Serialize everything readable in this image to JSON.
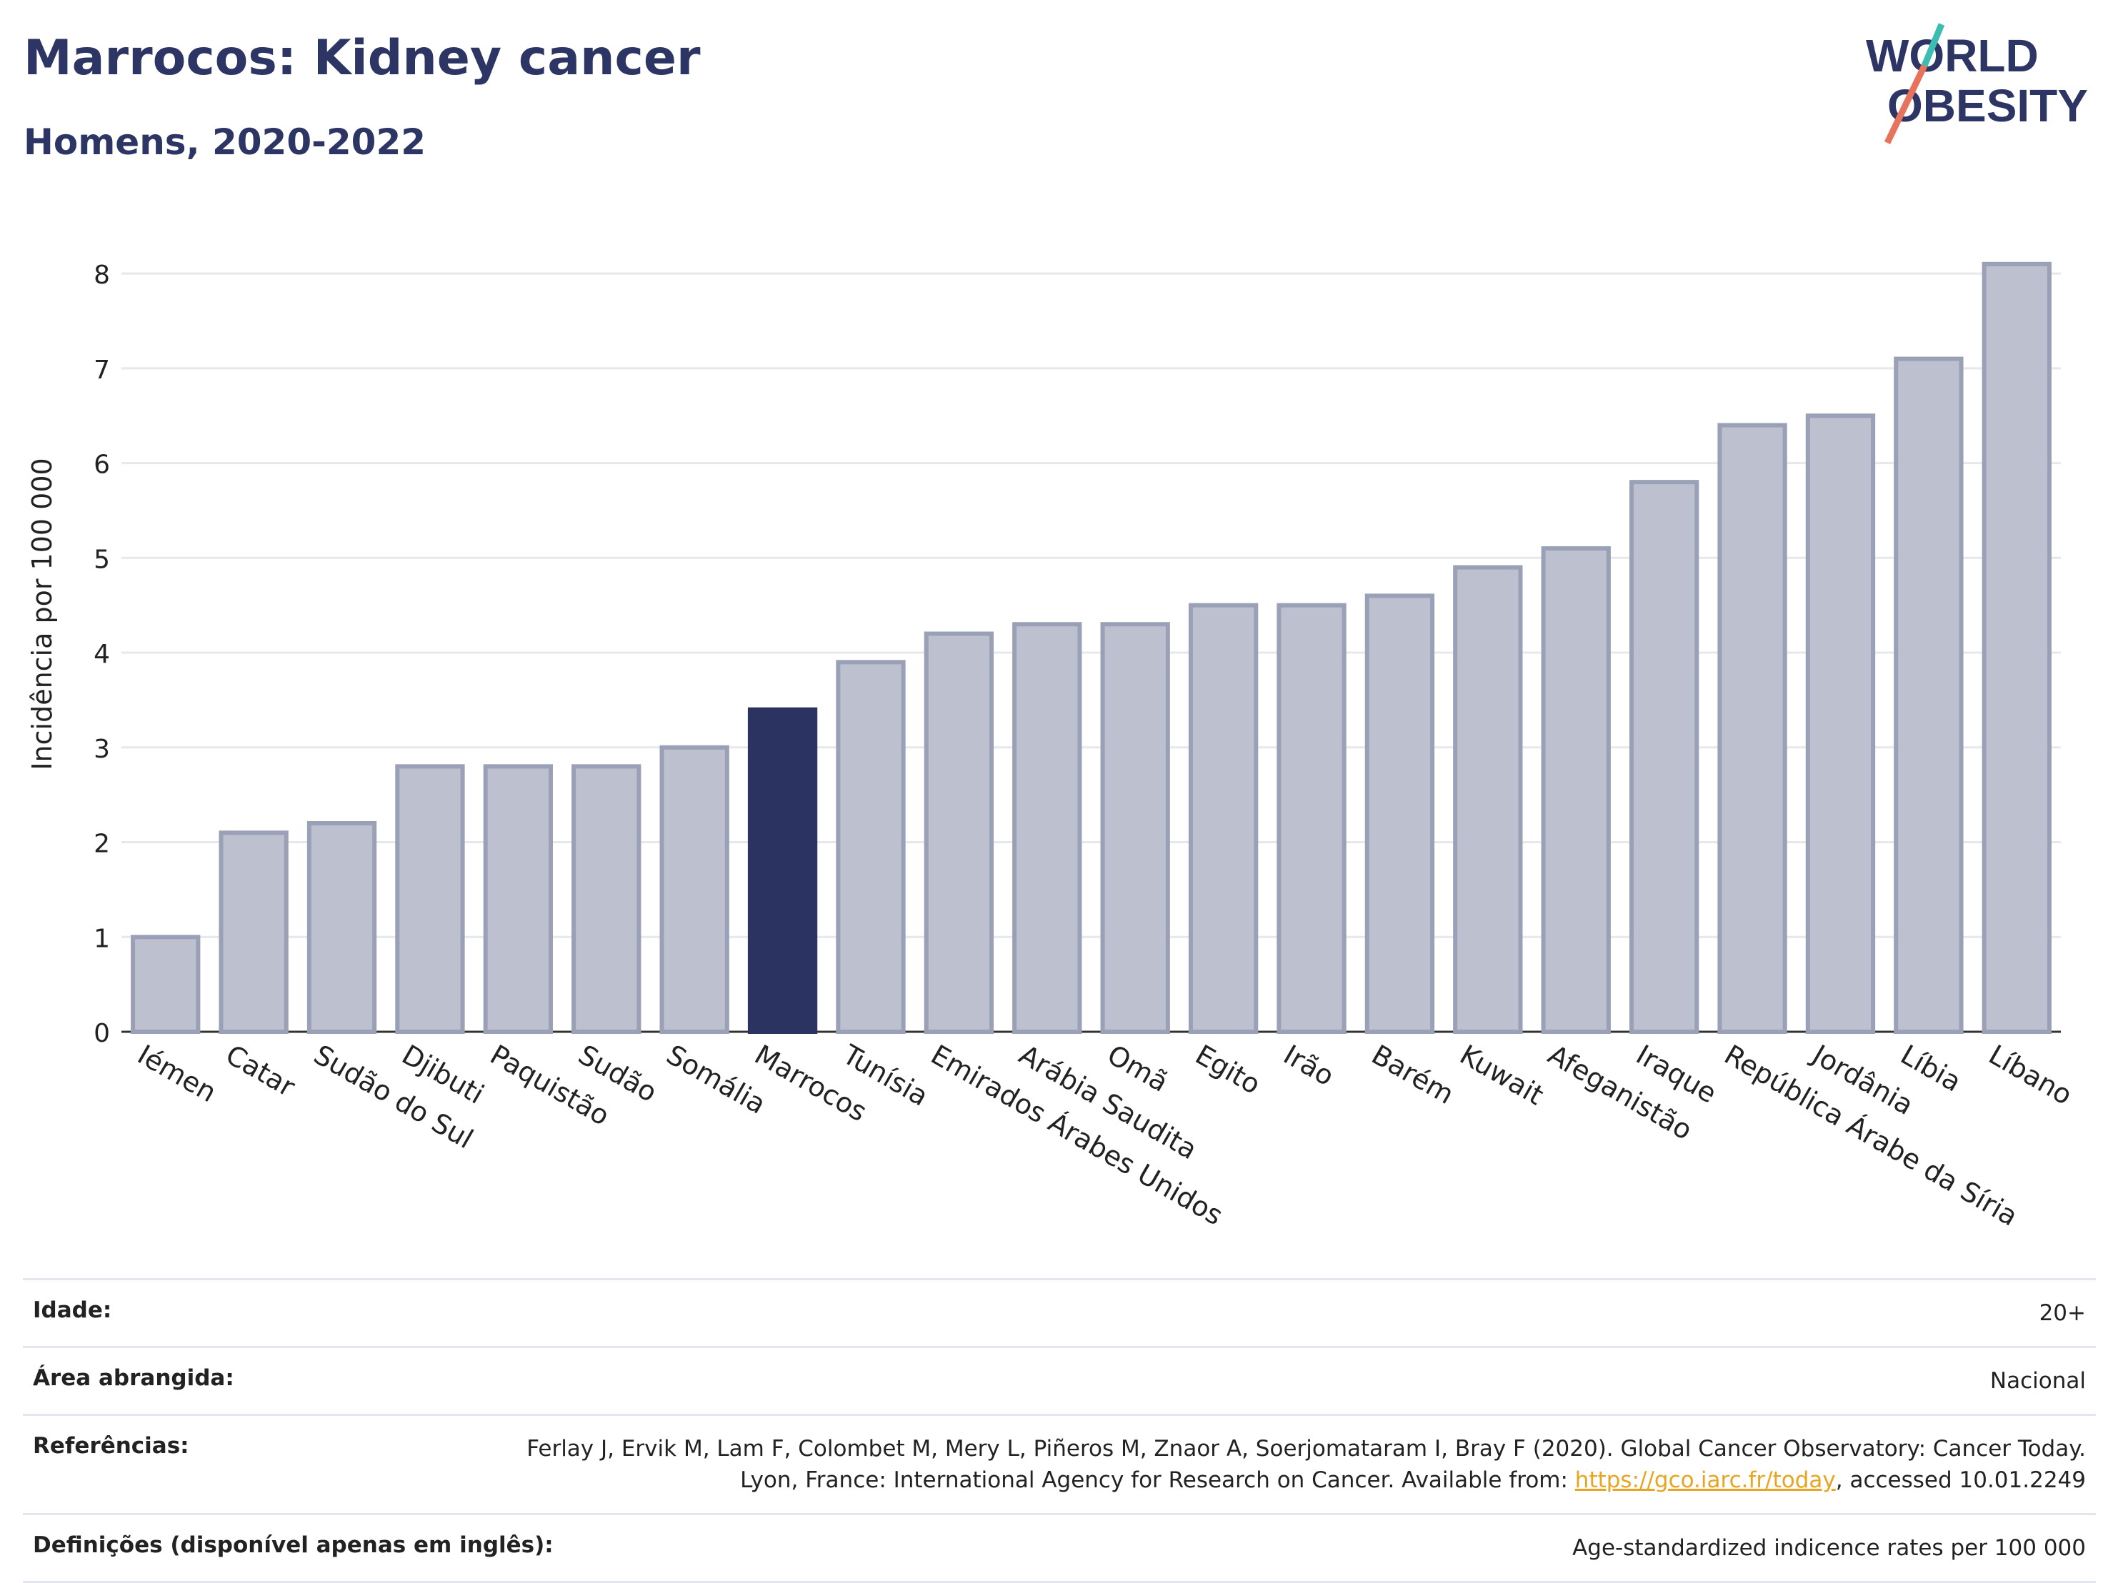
{
  "header": {
    "title": "Marrocos: Kidney cancer",
    "subtitle": "Homens, 2020-2022",
    "logo_line1": "WORLD",
    "logo_line2": "OBESITY"
  },
  "colors": {
    "highlight": "#2b3461",
    "bar": "#bcc0cf",
    "bar_border": "#9aa0b6",
    "title": "#2c3563",
    "logo_teal": "#3dbdb2",
    "logo_coral": "#e8735c"
  },
  "chart_data": {
    "type": "bar",
    "title": "Marrocos: Kidney cancer",
    "subtitle": "Homens, 2020-2022",
    "xlabel": "",
    "ylabel": "Incidência por 100 000",
    "ylim": [
      0,
      8.4
    ],
    "yticks": [
      0,
      1,
      2,
      3,
      4,
      5,
      6,
      7,
      8
    ],
    "grid": true,
    "highlight_category": "Marrocos",
    "categories": [
      "Iémen",
      "Catar",
      "Sudão do Sul",
      "Djibuti",
      "Paquistão",
      "Sudão",
      "Somália",
      "Marrocos",
      "Tunísia",
      "Emirados Árabes Unidos",
      "Arábia Saudita",
      "Omã",
      "Egito",
      "Irão",
      "Barém",
      "Kuwait",
      "Afeganistão",
      "Iraque",
      "República Árabe da Síria",
      "Jordânia",
      "Líbia",
      "Líbano"
    ],
    "values": [
      1.0,
      2.1,
      2.2,
      2.8,
      2.8,
      2.8,
      3.0,
      3.4,
      3.9,
      4.2,
      4.3,
      4.3,
      4.5,
      4.5,
      4.6,
      4.9,
      5.1,
      5.8,
      6.4,
      6.5,
      7.1,
      8.1
    ]
  },
  "info": {
    "rows": [
      {
        "label": "Idade:",
        "value": "20+"
      },
      {
        "label": "Área abrangida:",
        "value": "Nacional"
      },
      {
        "label": "Referências:",
        "value_pre": "Ferlay J, Ervik M, Lam F, Colombet M, Mery L, Piñeros M, Znaor A, Soerjomataram I, Bray F (2020). Global Cancer Observatory: Cancer Today. Lyon, France: International Agency for Research on Cancer. Available from: ",
        "link": "https://gco.iarc.fr/today",
        "value_post": ", accessed 10.01.2249"
      },
      {
        "label": "Definições (disponível apenas em inglês):",
        "value": "Age-standardized indicence rates per 100 000"
      }
    ]
  }
}
